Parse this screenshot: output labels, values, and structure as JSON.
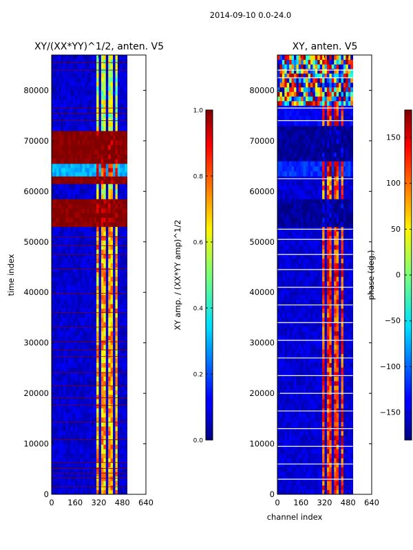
{
  "suptitle": "2014-09-10 0.0-24.0",
  "chart_data": [
    {
      "type": "heatmap",
      "title": "XY/(XX*YY)^1/2, anten. V5",
      "xlabel": "",
      "ylabel": "time index",
      "xlim": [
        0,
        640
      ],
      "ylim": [
        0,
        87000
      ],
      "xticks": [
        0,
        160,
        320,
        480,
        640
      ],
      "yticks": [
        0,
        10000,
        20000,
        30000,
        40000,
        50000,
        60000,
        70000,
        80000
      ],
      "data_extent_x": [
        0,
        512
      ],
      "colorbar": {
        "label": "XY amp. / (XX*YY amp)^1/2",
        "range": [
          0.0,
          1.0
        ],
        "ticks": [
          0.0,
          0.2,
          0.4,
          0.6,
          0.8,
          1.0
        ],
        "colormap": "jet"
      },
      "bands": [
        {
          "y0": 0,
          "y1": 53000,
          "base": 0.08,
          "hot": 0.7
        },
        {
          "y0": 53000,
          "y1": 58500,
          "base": 1.0,
          "hot": 1.0
        },
        {
          "y0": 58500,
          "y1": 61500,
          "base": 0.08,
          "hot": 0.6
        },
        {
          "y0": 61500,
          "y1": 63000,
          "base": 1.0,
          "hot": 1.0
        },
        {
          "y0": 63000,
          "y1": 65500,
          "base": 0.3,
          "hot": 0.85
        },
        {
          "y0": 65500,
          "y1": 72000,
          "base": 1.0,
          "hot": 1.0
        },
        {
          "y0": 72000,
          "y1": 87000,
          "base": 0.08,
          "hot": 0.55
        }
      ],
      "flag_lines_y": [
        1500,
        3200,
        4200,
        5100,
        6300,
        10800,
        14300,
        17600,
        19100,
        21500,
        24100,
        27300,
        28600,
        30200,
        33100,
        36000,
        39800,
        44600,
        47500,
        49200,
        51000,
        74000,
        75500,
        76500,
        84000,
        85500
      ]
    },
    {
      "type": "heatmap",
      "title": "XY, anten. V5",
      "xlabel": "channel index",
      "ylabel": "",
      "xlim": [
        0,
        640
      ],
      "ylim": [
        0,
        87000
      ],
      "xticks": [
        0,
        160,
        320,
        480,
        640
      ],
      "yticks": [
        0,
        10000,
        20000,
        30000,
        40000,
        50000,
        60000,
        70000,
        80000
      ],
      "data_extent_x": [
        0,
        512
      ],
      "colorbar": {
        "label": "phase (deg.)",
        "range": [
          -180,
          180
        ],
        "ticks": [
          -150,
          -100,
          -50,
          0,
          50,
          100,
          150
        ],
        "colormap": "jet"
      },
      "bands": [
        {
          "y0": 0,
          "y1": 53000,
          "base": -150,
          "hot": 120
        },
        {
          "y0": 53000,
          "y1": 58500,
          "base": -170,
          "hot": -170
        },
        {
          "y0": 58500,
          "y1": 63000,
          "base": -150,
          "hot": 100
        },
        {
          "y0": 63000,
          "y1": 66000,
          "base": -120,
          "hot": 150
        },
        {
          "y0": 66000,
          "y1": 73000,
          "base": -170,
          "hot": -170
        },
        {
          "y0": 73000,
          "y1": 77000,
          "base": -140,
          "hot": 120
        },
        {
          "y0": 77000,
          "y1": 87000,
          "base": 0,
          "hot": 0,
          "noise": true
        }
      ],
      "flag_lines_y": [
        3000,
        6000,
        9500,
        13000,
        16500,
        20000,
        23500,
        27000,
        30500,
        34000,
        37500,
        41000,
        44500,
        47500,
        50500,
        52500,
        62500,
        74000,
        76500,
        82500,
        84000
      ]
    }
  ]
}
